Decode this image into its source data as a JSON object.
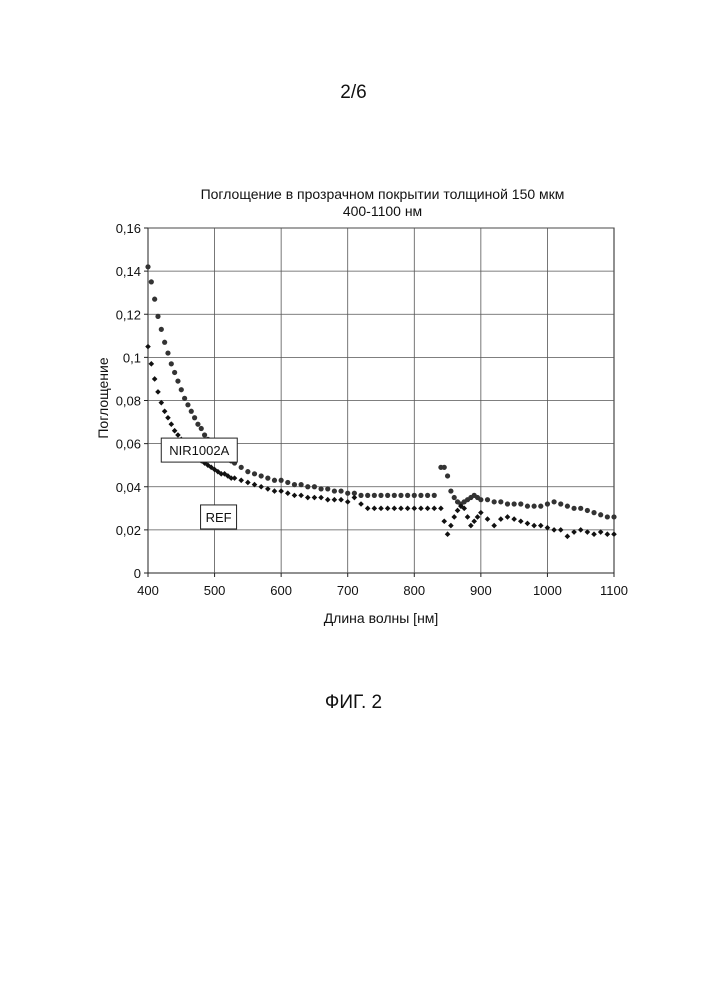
{
  "page": {
    "number": "2/6"
  },
  "figure": {
    "caption": "ФИГ. 2"
  },
  "chart_data": {
    "type": "scatter",
    "title": "Поглощение в прозрачном покрытии толщиной 150 мкм",
    "subtitle": "400-1100 нм",
    "xlabel": "Длина волны [нм]",
    "ylabel": "Поглощение",
    "xlim": [
      400,
      1100
    ],
    "ylim": [
      0,
      0.16
    ],
    "xticks": [
      400,
      500,
      600,
      700,
      800,
      900,
      1000,
      1100
    ],
    "yticks": [
      0,
      0.02,
      0.04,
      0.06,
      0.08,
      0.1,
      0.12,
      0.14,
      0.16
    ],
    "ytick_labels": [
      "0",
      "0,02",
      "0,04",
      "0,06",
      "0,08",
      "0,1",
      "0,12",
      "0,14",
      "0,16"
    ],
    "grid": true,
    "series": [
      {
        "name": "NIR1002A",
        "marker": "circle",
        "color": "#333333",
        "x": [
          400,
          405,
          410,
          415,
          420,
          425,
          430,
          435,
          440,
          445,
          450,
          455,
          460,
          465,
          470,
          475,
          480,
          485,
          490,
          495,
          500,
          505,
          510,
          515,
          520,
          525,
          530,
          540,
          550,
          560,
          570,
          580,
          590,
          600,
          610,
          620,
          630,
          640,
          650,
          660,
          670,
          680,
          690,
          700,
          710,
          720,
          730,
          740,
          750,
          760,
          770,
          780,
          790,
          800,
          810,
          820,
          830,
          840,
          845,
          850,
          855,
          860,
          865,
          870,
          875,
          880,
          885,
          890,
          895,
          900,
          910,
          920,
          930,
          940,
          950,
          960,
          970,
          980,
          990,
          1000,
          1010,
          1020,
          1030,
          1040,
          1050,
          1060,
          1070,
          1080,
          1090,
          1100
        ],
        "y": [
          0.142,
          0.135,
          0.127,
          0.119,
          0.113,
          0.107,
          0.102,
          0.097,
          0.093,
          0.089,
          0.085,
          0.081,
          0.078,
          0.075,
          0.072,
          0.069,
          0.067,
          0.064,
          0.062,
          0.06,
          0.058,
          0.057,
          0.056,
          0.054,
          0.053,
          0.052,
          0.051,
          0.049,
          0.047,
          0.046,
          0.045,
          0.044,
          0.043,
          0.043,
          0.042,
          0.041,
          0.041,
          0.04,
          0.04,
          0.039,
          0.039,
          0.038,
          0.038,
          0.037,
          0.037,
          0.036,
          0.036,
          0.036,
          0.036,
          0.036,
          0.036,
          0.036,
          0.036,
          0.036,
          0.036,
          0.036,
          0.036,
          0.049,
          0.049,
          0.045,
          0.038,
          0.035,
          0.033,
          0.032,
          0.033,
          0.034,
          0.035,
          0.036,
          0.035,
          0.034,
          0.034,
          0.033,
          0.033,
          0.032,
          0.032,
          0.032,
          0.031,
          0.031,
          0.031,
          0.032,
          0.033,
          0.032,
          0.031,
          0.03,
          0.03,
          0.029,
          0.028,
          0.027,
          0.026,
          0.026
        ]
      },
      {
        "name": "REF",
        "marker": "diamond",
        "color": "#111111",
        "x": [
          400,
          405,
          410,
          415,
          420,
          425,
          430,
          435,
          440,
          445,
          450,
          455,
          460,
          465,
          470,
          475,
          480,
          485,
          490,
          495,
          500,
          505,
          510,
          515,
          520,
          525,
          530,
          540,
          550,
          560,
          570,
          580,
          590,
          600,
          610,
          620,
          630,
          640,
          650,
          660,
          670,
          680,
          690,
          700,
          710,
          720,
          730,
          740,
          750,
          760,
          770,
          780,
          790,
          800,
          810,
          820,
          830,
          840,
          845,
          850,
          855,
          860,
          865,
          870,
          875,
          880,
          885,
          890,
          895,
          900,
          910,
          920,
          930,
          940,
          950,
          960,
          970,
          980,
          990,
          1000,
          1010,
          1020,
          1030,
          1040,
          1050,
          1060,
          1070,
          1080,
          1090,
          1100
        ],
        "y": [
          0.105,
          0.097,
          0.09,
          0.084,
          0.079,
          0.075,
          0.072,
          0.069,
          0.066,
          0.064,
          0.062,
          0.06,
          0.058,
          0.056,
          0.055,
          0.053,
          0.052,
          0.051,
          0.05,
          0.049,
          0.048,
          0.047,
          0.046,
          0.046,
          0.045,
          0.044,
          0.044,
          0.043,
          0.042,
          0.041,
          0.04,
          0.039,
          0.038,
          0.038,
          0.037,
          0.036,
          0.036,
          0.035,
          0.035,
          0.035,
          0.034,
          0.034,
          0.034,
          0.033,
          0.035,
          0.032,
          0.03,
          0.03,
          0.03,
          0.03,
          0.03,
          0.03,
          0.03,
          0.03,
          0.03,
          0.03,
          0.03,
          0.03,
          0.024,
          0.018,
          0.022,
          0.026,
          0.029,
          0.031,
          0.03,
          0.026,
          0.022,
          0.024,
          0.026,
          0.028,
          0.025,
          0.022,
          0.025,
          0.026,
          0.025,
          0.024,
          0.023,
          0.022,
          0.022,
          0.021,
          0.02,
          0.02,
          0.017,
          0.019,
          0.02,
          0.019,
          0.018,
          0.019,
          0.018,
          0.018
        ]
      }
    ],
    "annotations": [
      {
        "text": "NIR1002A",
        "x": 477,
        "y": 0.057
      },
      {
        "text": "REF",
        "x": 506,
        "y": 0.026
      }
    ]
  }
}
